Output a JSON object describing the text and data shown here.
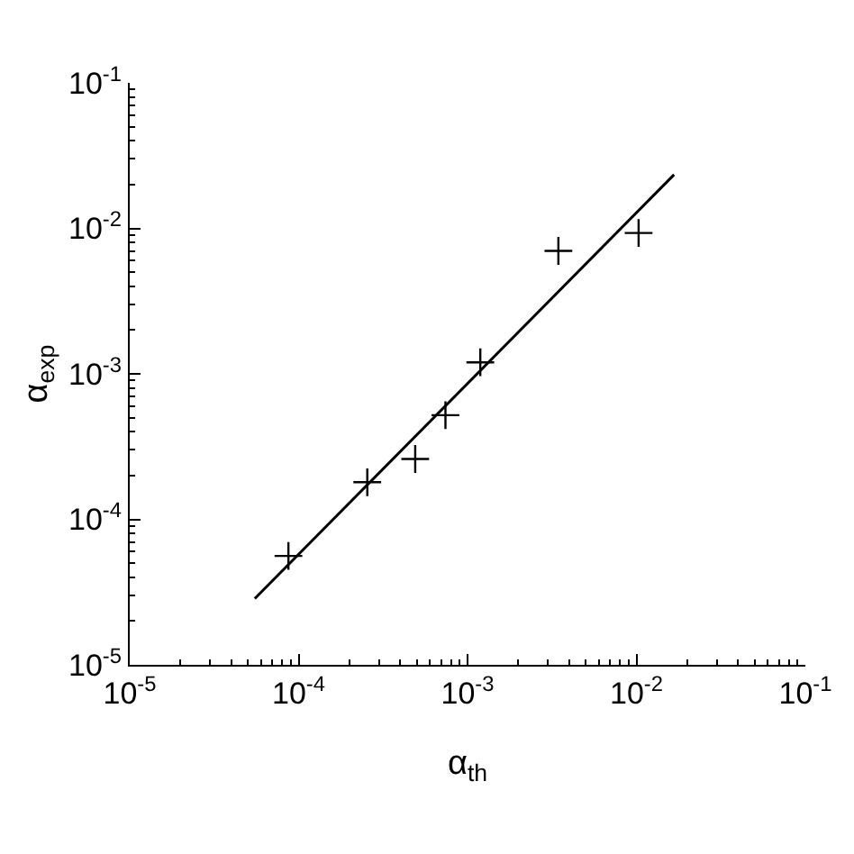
{
  "chart_data": {
    "type": "scatter",
    "xlabel": "α$_{th}$",
    "ylabel": "α$_{exp}$",
    "log": "xy",
    "marker": "cross",
    "xlim": [
      1e-05,
      0.1
    ],
    "ylim": [
      1e-05,
      0.1
    ],
    "xticks": [
      {
        "value": 1e-05,
        "label": "10$^{-5}$"
      },
      {
        "value": 0.0001,
        "label": "10$^{-4}$"
      },
      {
        "value": 0.001,
        "label": "10$^{-3}$"
      },
      {
        "value": 0.01,
        "label": "10$^{-2}$"
      },
      {
        "value": 0.1,
        "label": "10$^{-1}$"
      }
    ],
    "yticks": [
      {
        "value": 1e-05,
        "label": "10$^{-5}$"
      },
      {
        "value": 0.0001,
        "label": "10$^{-4}$"
      },
      {
        "value": 0.001,
        "label": "10$^{-3}$"
      },
      {
        "value": 0.01,
        "label": "10$^{-2}$"
      },
      {
        "value": 0.1,
        "label": "10$^{-1}$"
      }
    ],
    "series": [
      {
        "color": "#000000",
        "x": [
          8.7e-05,
          0.000255,
          0.00049,
          0.00074,
          0.00119,
          0.00345,
          0.0103
        ],
        "values": [
          5.6e-05,
          0.00018,
          0.00026,
          0.00052,
          0.0012,
          0.007,
          0.0093
        ]
      },
      {
        "type": "line",
        "color": "#000000",
        "marker": "none",
        "x": [
          5.5e-05,
          0.0167
        ],
        "values": [
          2.85e-05,
          0.0234
        ]
      }
    ]
  }
}
